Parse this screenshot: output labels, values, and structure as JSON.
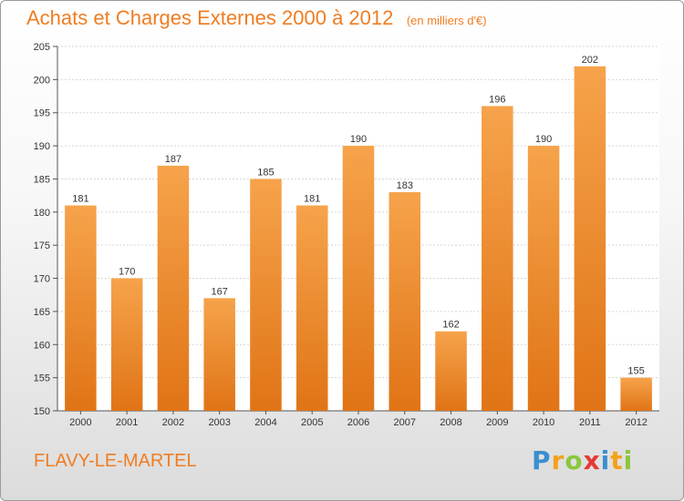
{
  "chart_data": {
    "type": "bar",
    "title": "Achats et Charges Externes 2000 à 2012",
    "subtitle": "(en milliers d'€)",
    "categories": [
      "2000",
      "2001",
      "2002",
      "2003",
      "2004",
      "2005",
      "2006",
      "2007",
      "2008",
      "2009",
      "2010",
      "2011",
      "2012"
    ],
    "values": [
      181,
      170,
      187,
      167,
      185,
      181,
      190,
      183,
      162,
      196,
      190,
      202,
      155
    ],
    "ylim": [
      150,
      205
    ],
    "yticks": [
      150,
      155,
      160,
      165,
      170,
      175,
      180,
      185,
      190,
      195,
      200,
      205
    ],
    "grid": true,
    "bar_color": "#f08a2a"
  },
  "place_name": "FLAVY-LE-MARTEL",
  "logo": {
    "letters": [
      "P",
      "r",
      "o",
      "x",
      "i",
      "t",
      "i"
    ],
    "colors": [
      "#3a8fd0",
      "#f2a31b",
      "#8cc63f",
      "#e53935",
      "#3a8fd0",
      "#f2a31b",
      "#8cc63f"
    ]
  }
}
